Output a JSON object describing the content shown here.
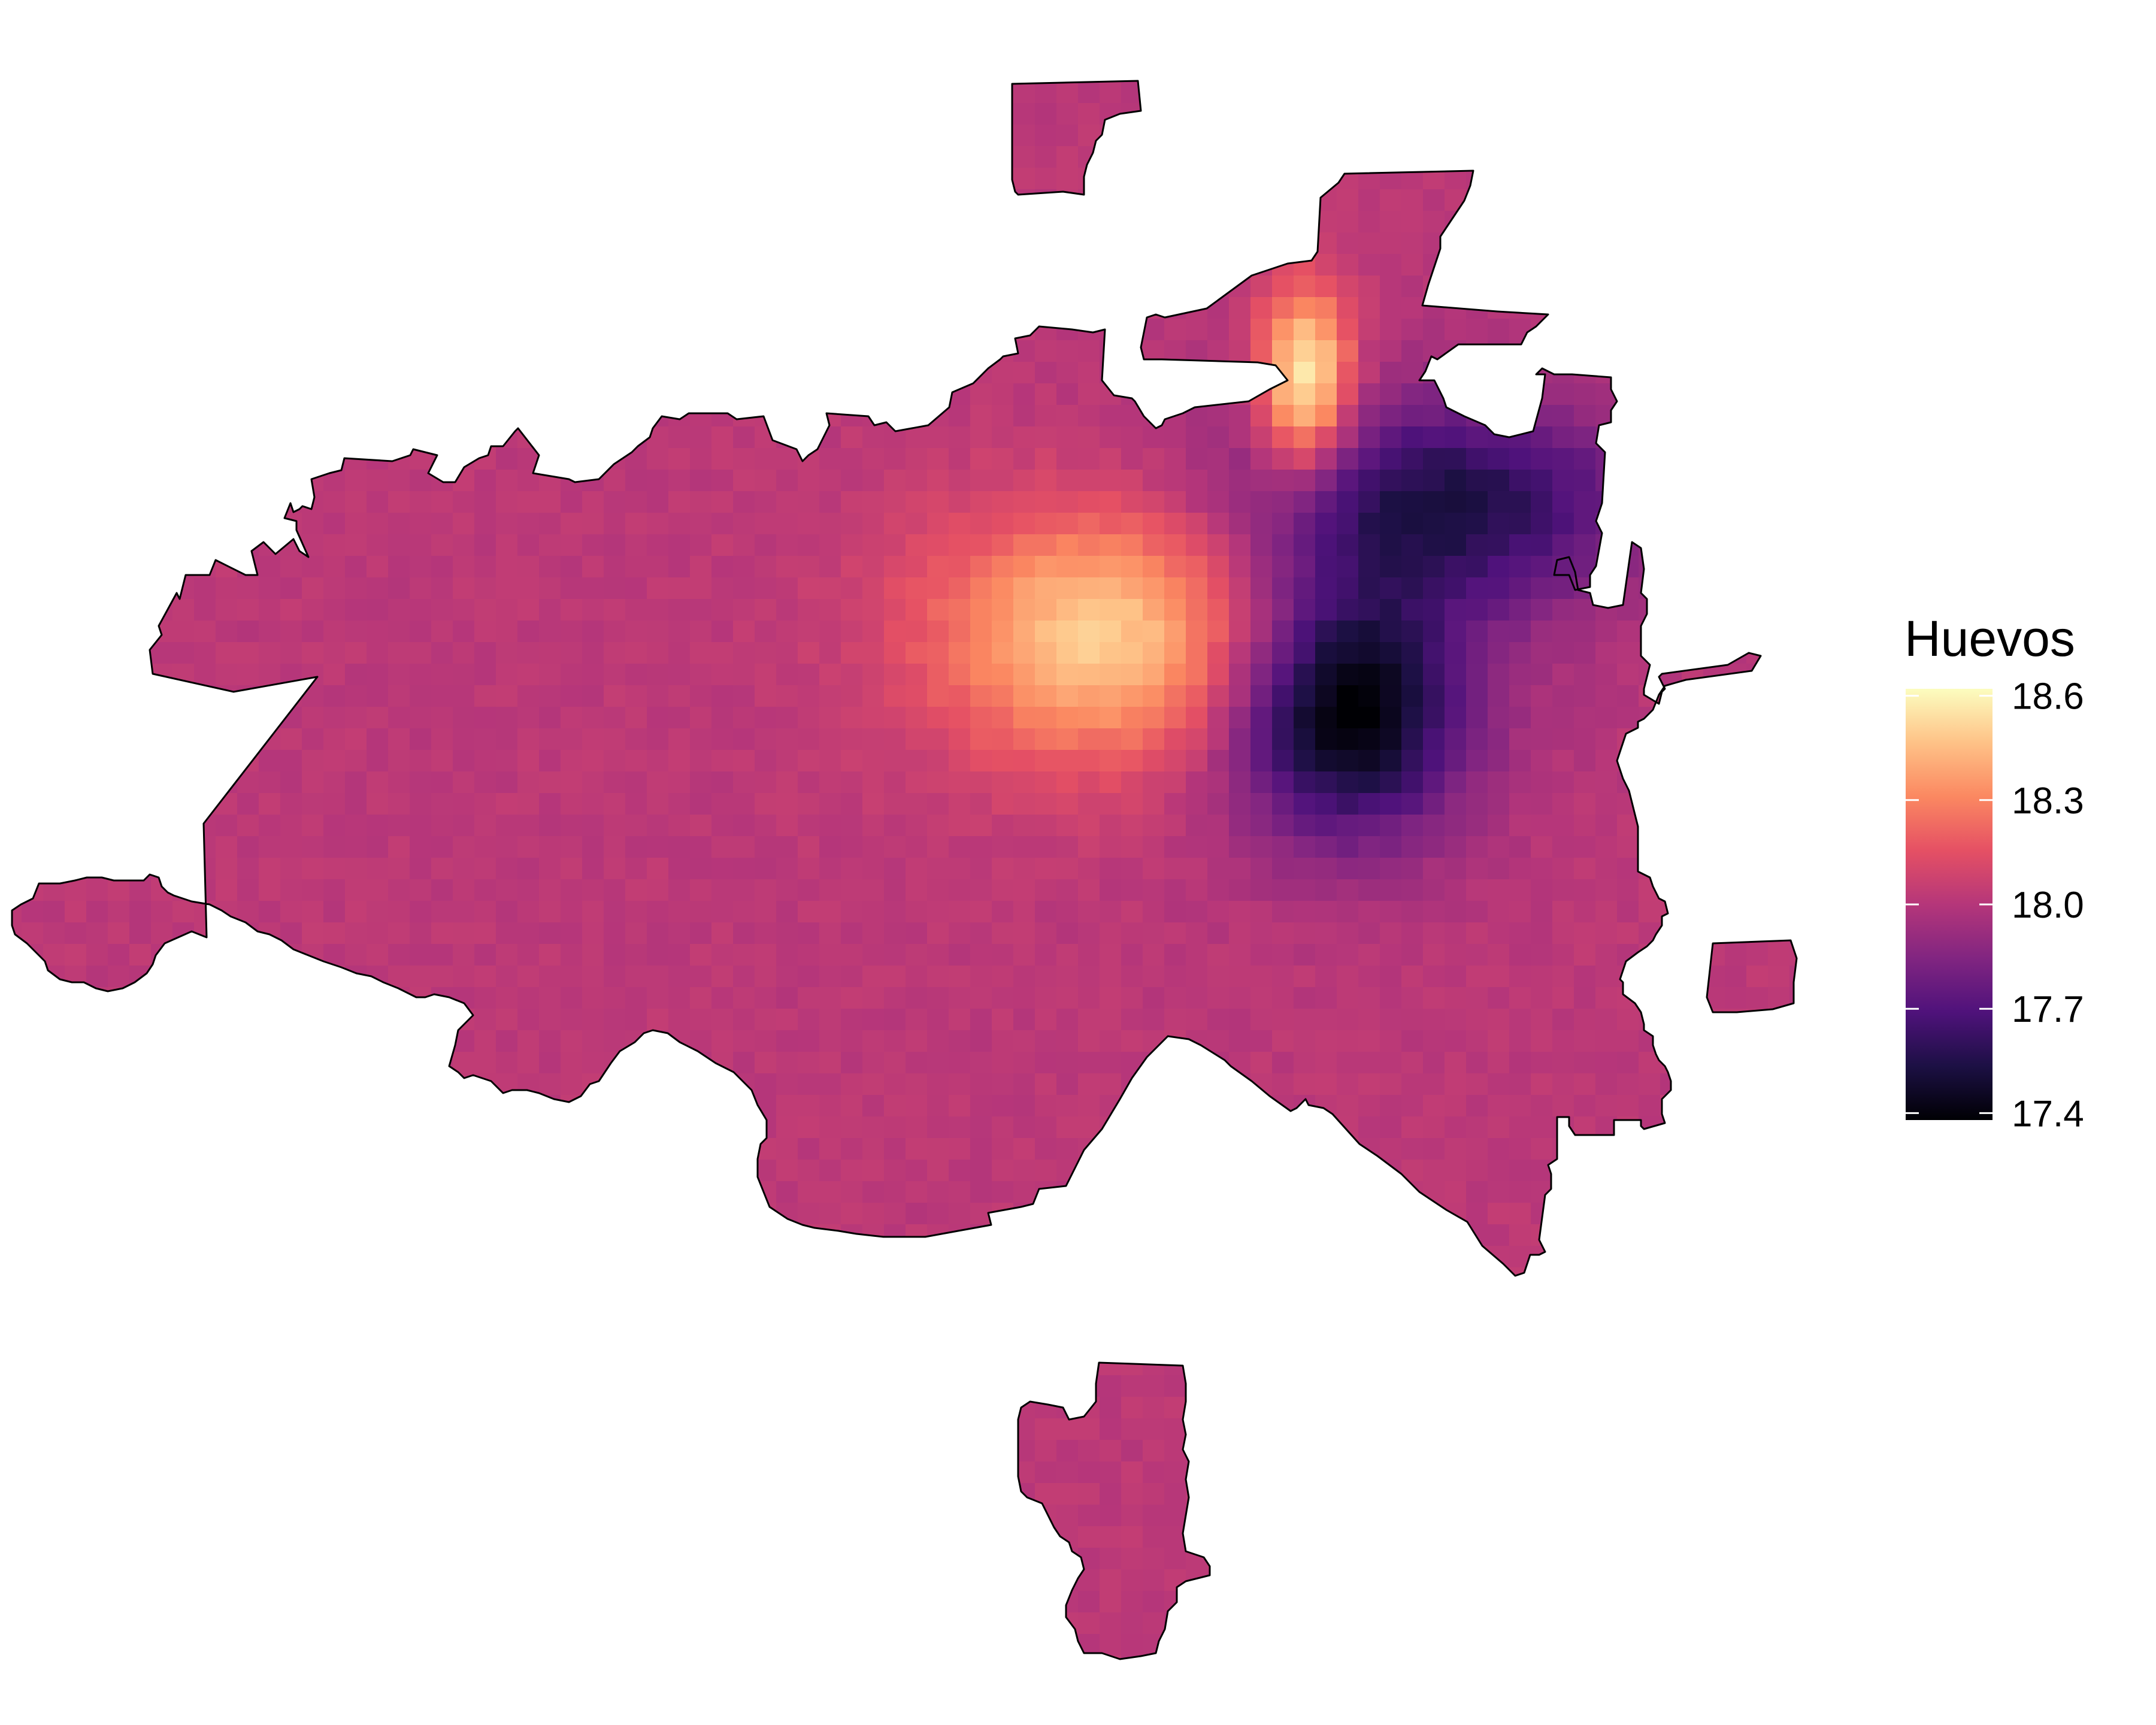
{
  "map": {
    "type": "heatmap",
    "value_name": "Huevos",
    "palette": "magma",
    "colors": {
      "min": "#000004",
      "mid": "#b73779",
      "max": "#fcfdbf",
      "boundary": "#000000",
      "background": "#ffffff"
    }
  },
  "legend": {
    "title": "Huevos",
    "range": [
      17.38,
      18.62
    ],
    "ticks": [
      "18.6",
      "18.3",
      "18.0",
      "17.7",
      "17.4"
    ],
    "tick_values": [
      18.6,
      18.3,
      18.0,
      17.7,
      17.4
    ],
    "position": "right"
  },
  "chart_data": {
    "type": "heatmap",
    "title": "",
    "legend_title": "Huevos",
    "value_range": [
      17.4,
      18.6
    ],
    "baseline_value": 18.0,
    "hotspots": [
      {
        "kind": "maximum",
        "area": "center-north",
        "peak_value": 18.5
      },
      {
        "kind": "maximum",
        "area": "north inlet",
        "peak_value": 18.6
      },
      {
        "kind": "minimum",
        "area": "east-center",
        "peak_value": 17.4
      },
      {
        "kind": "minimum",
        "area": "northeast",
        "peak_value": 17.6
      }
    ]
  }
}
